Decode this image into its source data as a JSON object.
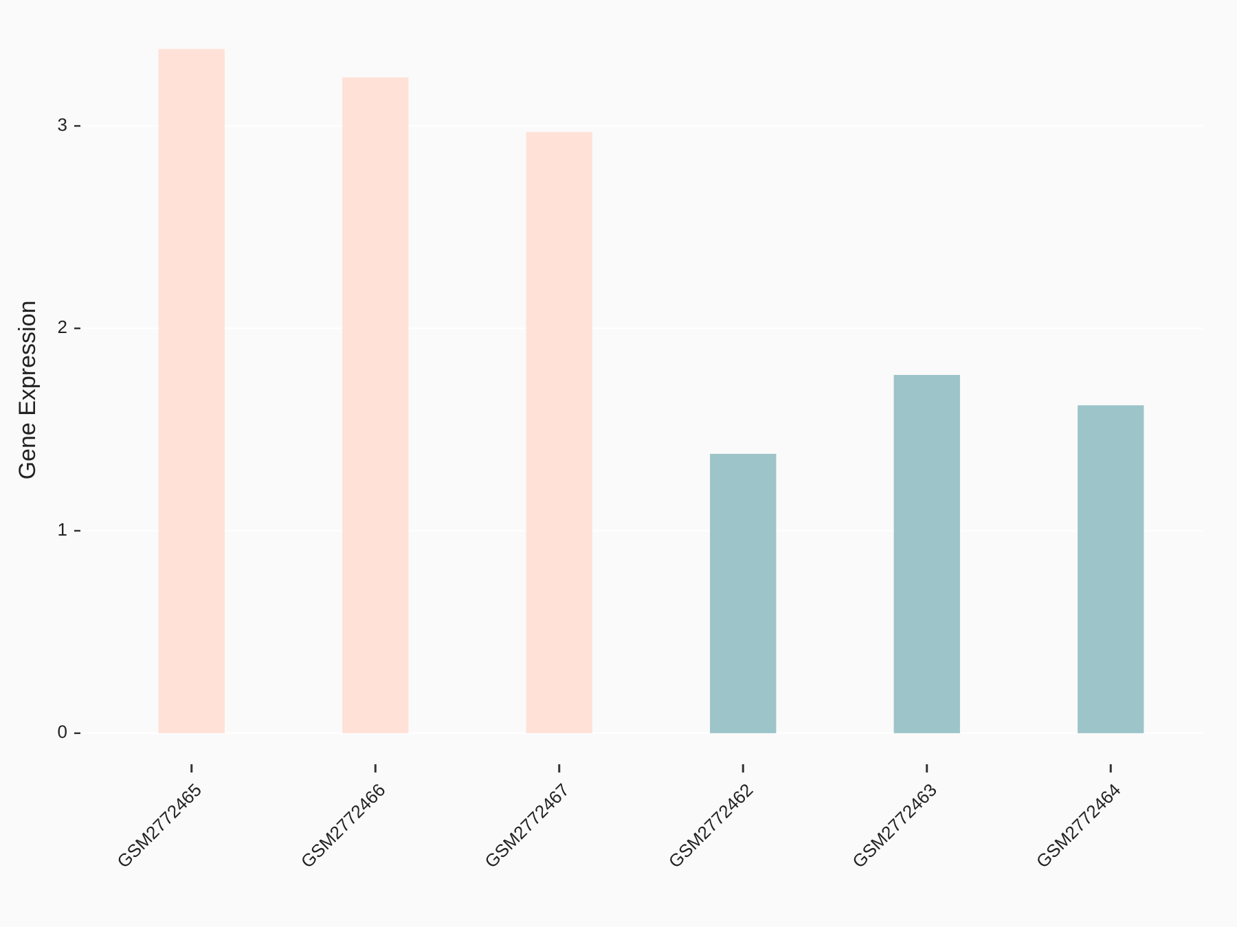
{
  "chart_data": {
    "type": "bar",
    "y_label": "Gene Expression",
    "categories": [
      "GSM2772465",
      "GSM2772466",
      "GSM2772467",
      "GSM2772462",
      "GSM2772463",
      "GSM2772464"
    ],
    "values": [
      3.38,
      3.24,
      2.97,
      1.38,
      1.77,
      1.62
    ],
    "colors": [
      "#ffe1d8",
      "#ffe1d8",
      "#ffe1d8",
      "#9dc4c8",
      "#9dc4c8",
      "#9dc4c8"
    ],
    "ylim": [
      -0.15,
      3.5
    ],
    "yticks": [
      0,
      1,
      2,
      3
    ],
    "grid": true
  }
}
